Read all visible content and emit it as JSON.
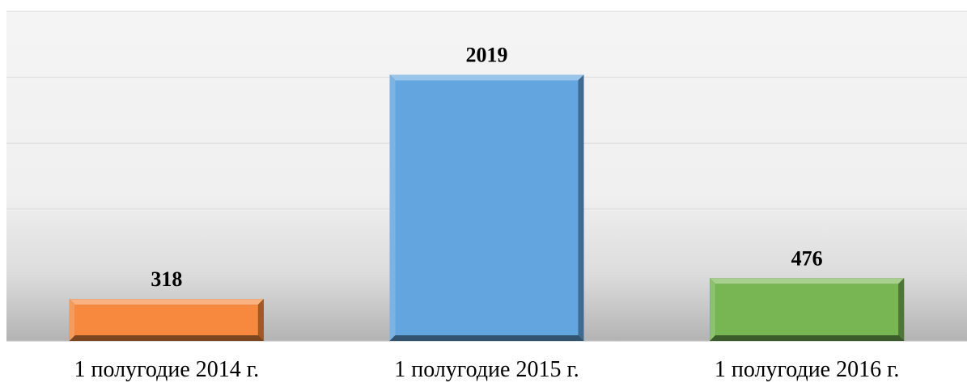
{
  "chart_data": {
    "type": "bar",
    "categories": [
      "1 полугодие 2014 г.",
      "1 полугодие 2015 г.",
      "1 полугодие 2016 г."
    ],
    "values": [
      318,
      2019,
      476
    ],
    "value_labels": [
      "318",
      "2019",
      "476"
    ],
    "bar_colors": [
      "#f6893d",
      "#62a5df",
      "#78b653"
    ],
    "ylim": [
      0,
      2500
    ],
    "grid": true,
    "gridline_values": [
      500,
      1000,
      1500,
      2000,
      2500
    ],
    "legend": "none",
    "title": "",
    "xlabel": "",
    "ylabel": ""
  }
}
